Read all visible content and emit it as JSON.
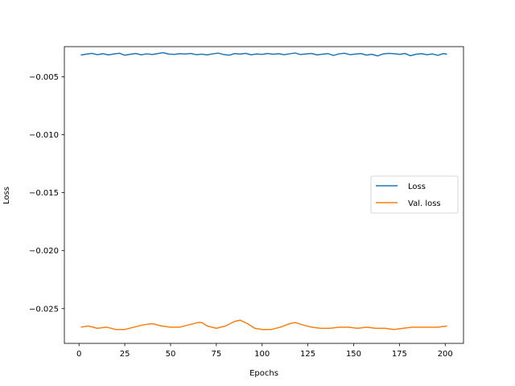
{
  "chart_data": {
    "type": "line",
    "title": "",
    "xlabel": "Epochs",
    "ylabel": "Loss",
    "xlim": [
      -8,
      210
    ],
    "ylim": [
      -0.028,
      -0.0024
    ],
    "xticks": [
      0,
      25,
      50,
      75,
      100,
      125,
      150,
      175,
      200
    ],
    "xtick_labels": [
      "0",
      "25",
      "50",
      "75",
      "100",
      "125",
      "150",
      "175",
      "200"
    ],
    "yticks": [
      -0.025,
      -0.02,
      -0.015,
      -0.01,
      -0.005
    ],
    "ytick_labels": [
      "−0.025",
      "−0.020",
      "−0.015",
      "−0.010",
      "−0.005"
    ],
    "grid": false,
    "legend_position": "center-right",
    "series": [
      {
        "name": "Loss",
        "color": "#1f77b4",
        "x": [
          1,
          4,
          7,
          10,
          13,
          16,
          19,
          22,
          25,
          28,
          31,
          34,
          37,
          40,
          43,
          46,
          49,
          52,
          55,
          58,
          61,
          64,
          67,
          70,
          73,
          76,
          79,
          82,
          85,
          88,
          91,
          94,
          97,
          100,
          103,
          106,
          109,
          112,
          115,
          118,
          121,
          124,
          127,
          130,
          133,
          136,
          139,
          142,
          145,
          148,
          151,
          154,
          157,
          160,
          163,
          166,
          169,
          172,
          175,
          178,
          181,
          184,
          187,
          190,
          193,
          196,
          199,
          201
        ],
        "y": [
          -0.00312,
          -0.00305,
          -0.00298,
          -0.00309,
          -0.00301,
          -0.00311,
          -0.00303,
          -0.00297,
          -0.00314,
          -0.00306,
          -0.00299,
          -0.0031,
          -0.00302,
          -0.00308,
          -0.003,
          -0.00292,
          -0.00304,
          -0.00307,
          -0.00301,
          -0.00303,
          -0.00299,
          -0.00309,
          -0.00305,
          -0.00311,
          -0.00302,
          -0.00296,
          -0.00308,
          -0.00314,
          -0.003,
          -0.00304,
          -0.00298,
          -0.0031,
          -0.00303,
          -0.00307,
          -0.00299,
          -0.00306,
          -0.00301,
          -0.00309,
          -0.00302,
          -0.00295,
          -0.00308,
          -0.00303,
          -0.00299,
          -0.00311,
          -0.00305,
          -0.003,
          -0.00316,
          -0.00302,
          -0.00297,
          -0.00309,
          -0.00304,
          -0.003,
          -0.00313,
          -0.00306,
          -0.0032,
          -0.00303,
          -0.00298,
          -0.00301,
          -0.00307,
          -0.00299,
          -0.00318,
          -0.00306,
          -0.00301,
          -0.00309,
          -0.00303,
          -0.00315,
          -0.003,
          -0.00305
        ]
      },
      {
        "name": "Val. loss",
        "color": "#ff7f0e",
        "x": [
          1,
          5,
          10,
          15,
          20,
          25,
          30,
          35,
          40,
          45,
          50,
          55,
          60,
          65,
          67,
          70,
          75,
          80,
          85,
          88,
          92,
          96,
          100,
          105,
          110,
          115,
          118,
          122,
          127,
          132,
          137,
          142,
          147,
          152,
          157,
          162,
          167,
          172,
          177,
          182,
          187,
          192,
          196,
          201
        ],
        "y": [
          -0.0266,
          -0.0265,
          -0.0267,
          -0.0266,
          -0.0268,
          -0.0268,
          -0.0266,
          -0.0264,
          -0.0263,
          -0.0265,
          -0.0266,
          -0.0266,
          -0.0264,
          -0.0262,
          -0.0262,
          -0.0265,
          -0.0267,
          -0.0265,
          -0.0261,
          -0.026,
          -0.0263,
          -0.0267,
          -0.0268,
          -0.0268,
          -0.0266,
          -0.0263,
          -0.0262,
          -0.0264,
          -0.0266,
          -0.0267,
          -0.0267,
          -0.0266,
          -0.0266,
          -0.0267,
          -0.0266,
          -0.0267,
          -0.0267,
          -0.0268,
          -0.0267,
          -0.0266,
          -0.0266,
          -0.0266,
          -0.0266,
          -0.0265
        ]
      }
    ]
  }
}
